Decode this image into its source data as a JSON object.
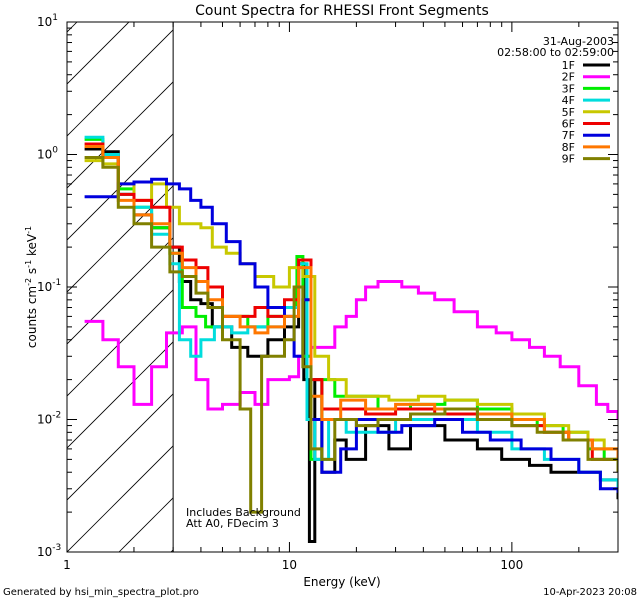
{
  "chart_data": {
    "type": "line",
    "title": "Count Spectra for RHESSI Front Segments",
    "xlabel": "Energy (keV)",
    "ylabel_parts": [
      "counts cm",
      "-2",
      " s",
      "-1",
      " keV",
      "-1"
    ],
    "x_scale": "log",
    "y_scale": "log",
    "xlim": [
      1,
      300
    ],
    "ylim": [
      0.001,
      10
    ],
    "x_ticks": [
      {
        "value": 1,
        "label": "1"
      },
      {
        "value": 10,
        "label": "10"
      },
      {
        "value": 100,
        "label": "100"
      }
    ],
    "y_ticks": [
      {
        "value": 10,
        "base": "10",
        "exp": "1"
      },
      {
        "value": 1,
        "base": "10",
        "exp": "0"
      },
      {
        "value": 0.1,
        "base": "10",
        "exp": "-1"
      },
      {
        "value": 0.01,
        "base": "10",
        "exp": "-2"
      },
      {
        "value": 0.001,
        "base": "10",
        "exp": "-3"
      }
    ],
    "hatched_region_max_keV": 3,
    "header_date": "31-Aug-2003",
    "header_time": "02:58:00 to 02:59:00",
    "annotations": [
      "Includes Background",
      "Att A0, FDecim 3"
    ],
    "footer_left": "Generated by hsi_min_spectra_plot.pro",
    "footer_right": "10-Apr-2023 20:08",
    "series": [
      {
        "name": "1F",
        "color": "#000000",
        "points": [
          [
            1.2,
            1.1
          ],
          [
            1.45,
            1.05
          ],
          [
            1.7,
            0.5
          ],
          [
            2.0,
            0.35
          ],
          [
            2.4,
            0.28
          ],
          [
            2.9,
            0.2
          ],
          [
            3.2,
            0.11
          ],
          [
            3.6,
            0.08
          ],
          [
            4.0,
            0.075
          ],
          [
            4.5,
            0.05
          ],
          [
            5.5,
            0.035
          ],
          [
            6.5,
            0.03
          ],
          [
            8,
            0.04
          ],
          [
            9.5,
            0.05
          ],
          [
            11,
            0.15
          ],
          [
            11.6,
            0.02
          ],
          [
            12.3,
            0.0012
          ],
          [
            13,
            0.02
          ],
          [
            14,
            0.004
          ],
          [
            16,
            0.007
          ],
          [
            18,
            0.005
          ],
          [
            22,
            0.009
          ],
          [
            28,
            0.006
          ],
          [
            35,
            0.009
          ],
          [
            50,
            0.007
          ],
          [
            70,
            0.006
          ],
          [
            90,
            0.005
          ],
          [
            120,
            0.0045
          ],
          [
            150,
            0.004
          ],
          [
            200,
            0.004
          ],
          [
            250,
            0.0035
          ],
          [
            300,
            0.0025
          ]
        ]
      },
      {
        "name": "2F",
        "color": "#ff00ff",
        "points": [
          [
            1.2,
            0.055
          ],
          [
            1.45,
            0.04
          ],
          [
            1.7,
            0.025
          ],
          [
            2.0,
            0.013
          ],
          [
            2.4,
            0.025
          ],
          [
            2.8,
            0.045
          ],
          [
            3.3,
            0.05
          ],
          [
            3.8,
            0.02
          ],
          [
            4.3,
            0.012
          ],
          [
            5,
            0.013
          ],
          [
            6,
            0.016
          ],
          [
            7,
            0.013
          ],
          [
            8,
            0.02
          ],
          [
            9,
            0.02
          ],
          [
            10,
            0.021
          ],
          [
            11,
            0.03
          ],
          [
            12.5,
            0.035
          ],
          [
            14,
            0.035
          ],
          [
            16,
            0.05
          ],
          [
            18,
            0.06
          ],
          [
            20,
            0.08
          ],
          [
            22,
            0.1
          ],
          [
            25,
            0.11
          ],
          [
            28,
            0.11
          ],
          [
            32,
            0.1
          ],
          [
            38,
            0.09
          ],
          [
            45,
            0.08
          ],
          [
            55,
            0.065
          ],
          [
            70,
            0.05
          ],
          [
            85,
            0.045
          ],
          [
            100,
            0.04
          ],
          [
            120,
            0.035
          ],
          [
            140,
            0.03
          ],
          [
            165,
            0.025
          ],
          [
            200,
            0.018
          ],
          [
            240,
            0.013
          ],
          [
            270,
            0.0115
          ],
          [
            300,
            0.01
          ]
        ]
      },
      {
        "name": "3F",
        "color": "#00ee00",
        "points": [
          [
            1.2,
            1.3
          ],
          [
            1.45,
            0.95
          ],
          [
            1.7,
            0.55
          ],
          [
            2.0,
            0.4
          ],
          [
            2.4,
            0.28
          ],
          [
            2.9,
            0.18
          ],
          [
            3.3,
            0.07
          ],
          [
            3.8,
            0.06
          ],
          [
            4.2,
            0.05
          ],
          [
            5,
            0.06
          ],
          [
            6.5,
            0.05
          ],
          [
            8,
            0.06
          ],
          [
            9.5,
            0.07
          ],
          [
            10.8,
            0.17
          ],
          [
            11.5,
            0.03
          ],
          [
            12.5,
            0.005
          ],
          [
            14,
            0.02
          ],
          [
            16,
            0.015
          ],
          [
            20,
            0.015
          ],
          [
            25,
            0.012
          ],
          [
            35,
            0.013
          ],
          [
            50,
            0.014
          ],
          [
            70,
            0.012
          ],
          [
            100,
            0.01
          ],
          [
            130,
            0.009
          ],
          [
            170,
            0.008
          ],
          [
            220,
            0.006
          ],
          [
            260,
            0.005
          ],
          [
            300,
            0.004
          ]
        ]
      },
      {
        "name": "4F",
        "color": "#00dddd",
        "points": [
          [
            1.2,
            1.35
          ],
          [
            1.45,
            1.0
          ],
          [
            1.7,
            0.5
          ],
          [
            2.0,
            0.4
          ],
          [
            2.4,
            0.25
          ],
          [
            2.9,
            0.15
          ],
          [
            3.2,
            0.04
          ],
          [
            3.6,
            0.03
          ],
          [
            4.0,
            0.04
          ],
          [
            4.6,
            0.05
          ],
          [
            5.5,
            0.045
          ],
          [
            6.5,
            0.05
          ],
          [
            8,
            0.05
          ],
          [
            9.5,
            0.07
          ],
          [
            11,
            0.15
          ],
          [
            12,
            0.01
          ],
          [
            13,
            0.005
          ],
          [
            15,
            0.01
          ],
          [
            18,
            0.008
          ],
          [
            22,
            0.008
          ],
          [
            30,
            0.01
          ],
          [
            45,
            0.01
          ],
          [
            70,
            0.008
          ],
          [
            100,
            0.006
          ],
          [
            140,
            0.005
          ],
          [
            200,
            0.004
          ],
          [
            250,
            0.0035
          ],
          [
            300,
            0.003
          ]
        ]
      },
      {
        "name": "5F",
        "color": "#c8c800",
        "points": [
          [
            1.2,
            0.9
          ],
          [
            1.45,
            0.85
          ],
          [
            1.7,
            0.6
          ],
          [
            2.0,
            0.45
          ],
          [
            2.4,
            0.6
          ],
          [
            2.8,
            0.4
          ],
          [
            3.2,
            0.3
          ],
          [
            3.6,
            0.3
          ],
          [
            4.0,
            0.28
          ],
          [
            4.5,
            0.2
          ],
          [
            5.2,
            0.18
          ],
          [
            6.0,
            0.15
          ],
          [
            7,
            0.12
          ],
          [
            8.5,
            0.1
          ],
          [
            10,
            0.14
          ],
          [
            11.5,
            0.12
          ],
          [
            13,
            0.03
          ],
          [
            15,
            0.02
          ],
          [
            18,
            0.015
          ],
          [
            22,
            0.015
          ],
          [
            28,
            0.014
          ],
          [
            38,
            0.015
          ],
          [
            50,
            0.014
          ],
          [
            70,
            0.013
          ],
          [
            100,
            0.011
          ],
          [
            140,
            0.009
          ],
          [
            180,
            0.008
          ],
          [
            220,
            0.007
          ],
          [
            260,
            0.006
          ],
          [
            300,
            0.005
          ]
        ]
      },
      {
        "name": "6F",
        "color": "#ee0000",
        "points": [
          [
            1.2,
            1.2
          ],
          [
            1.45,
            0.95
          ],
          [
            1.7,
            0.5
          ],
          [
            2.0,
            0.45
          ],
          [
            2.4,
            0.4
          ],
          [
            2.9,
            0.2
          ],
          [
            3.3,
            0.16
          ],
          [
            3.8,
            0.14
          ],
          [
            4.3,
            0.1
          ],
          [
            5,
            0.06
          ],
          [
            6,
            0.06
          ],
          [
            7,
            0.07
          ],
          [
            8,
            0.06
          ],
          [
            9.5,
            0.08
          ],
          [
            11,
            0.16
          ],
          [
            12.5,
            0.02
          ],
          [
            14,
            0.012
          ],
          [
            17,
            0.012
          ],
          [
            22,
            0.011
          ],
          [
            30,
            0.012
          ],
          [
            45,
            0.011
          ],
          [
            70,
            0.01
          ],
          [
            100,
            0.009
          ],
          [
            140,
            0.008
          ],
          [
            180,
            0.007
          ],
          [
            230,
            0.005
          ],
          [
            300,
            0.004
          ]
        ]
      },
      {
        "name": "7F",
        "color": "#0000dd",
        "points": [
          [
            1.2,
            0.48
          ],
          [
            1.45,
            0.48
          ],
          [
            1.7,
            0.6
          ],
          [
            2.0,
            0.62
          ],
          [
            2.4,
            0.65
          ],
          [
            2.8,
            0.6
          ],
          [
            3.2,
            0.55
          ],
          [
            3.6,
            0.45
          ],
          [
            4.0,
            0.4
          ],
          [
            4.5,
            0.3
          ],
          [
            5.2,
            0.22
          ],
          [
            6.0,
            0.15
          ],
          [
            7,
            0.1
          ],
          [
            8,
            0.07
          ],
          [
            9.5,
            0.06
          ],
          [
            10.5,
            0.03
          ],
          [
            11.5,
            0.08
          ],
          [
            12.5,
            0.01
          ],
          [
            14,
            0.004
          ],
          [
            17,
            0.006
          ],
          [
            20,
            0.01
          ],
          [
            25,
            0.008
          ],
          [
            32,
            0.009
          ],
          [
            45,
            0.01
          ],
          [
            60,
            0.008
          ],
          [
            80,
            0.007
          ],
          [
            110,
            0.006
          ],
          [
            150,
            0.005
          ],
          [
            200,
            0.004
          ],
          [
            250,
            0.003
          ],
          [
            300,
            0.0028
          ]
        ]
      },
      {
        "name": "8F",
        "color": "#ff7700",
        "points": [
          [
            1.2,
            1.15
          ],
          [
            1.45,
            0.95
          ],
          [
            1.7,
            0.45
          ],
          [
            2.0,
            0.35
          ],
          [
            2.4,
            0.3
          ],
          [
            2.9,
            0.18
          ],
          [
            3.3,
            0.14
          ],
          [
            3.8,
            0.11
          ],
          [
            4.3,
            0.08
          ],
          [
            5,
            0.06
          ],
          [
            6,
            0.05
          ],
          [
            7,
            0.045
          ],
          [
            8,
            0.05
          ],
          [
            9.5,
            0.06
          ],
          [
            11,
            0.14
          ],
          [
            12.5,
            0.015
          ],
          [
            14,
            0.01
          ],
          [
            17,
            0.014
          ],
          [
            22,
            0.012
          ],
          [
            30,
            0.013
          ],
          [
            45,
            0.012
          ],
          [
            70,
            0.011
          ],
          [
            100,
            0.01
          ],
          [
            140,
            0.008
          ],
          [
            180,
            0.007
          ],
          [
            230,
            0.006
          ],
          [
            300,
            0.0045
          ]
        ]
      },
      {
        "name": "9F",
        "color": "#808000",
        "points": [
          [
            1.2,
            0.95
          ],
          [
            1.45,
            0.8
          ],
          [
            1.7,
            0.4
          ],
          [
            2.0,
            0.3
          ],
          [
            2.4,
            0.2
          ],
          [
            2.9,
            0.13
          ],
          [
            3.3,
            0.12
          ],
          [
            3.8,
            0.09
          ],
          [
            4.3,
            0.07
          ],
          [
            5,
            0.04
          ],
          [
            6,
            0.012
          ],
          [
            6.7,
            0.002
          ],
          [
            7.5,
            0.03
          ],
          [
            8.5,
            0.03
          ],
          [
            9.5,
            0.04
          ],
          [
            10.5,
            0.1
          ],
          [
            11.5,
            0.025
          ],
          [
            12.5,
            0.006
          ],
          [
            14,
            0.005
          ],
          [
            16,
            0.01
          ],
          [
            20,
            0.009
          ],
          [
            25,
            0.01
          ],
          [
            35,
            0.011
          ],
          [
            50,
            0.012
          ],
          [
            70,
            0.01
          ],
          [
            100,
            0.009
          ],
          [
            130,
            0.008
          ],
          [
            170,
            0.007
          ],
          [
            220,
            0.005
          ],
          [
            300,
            0.004
          ]
        ]
      }
    ]
  }
}
